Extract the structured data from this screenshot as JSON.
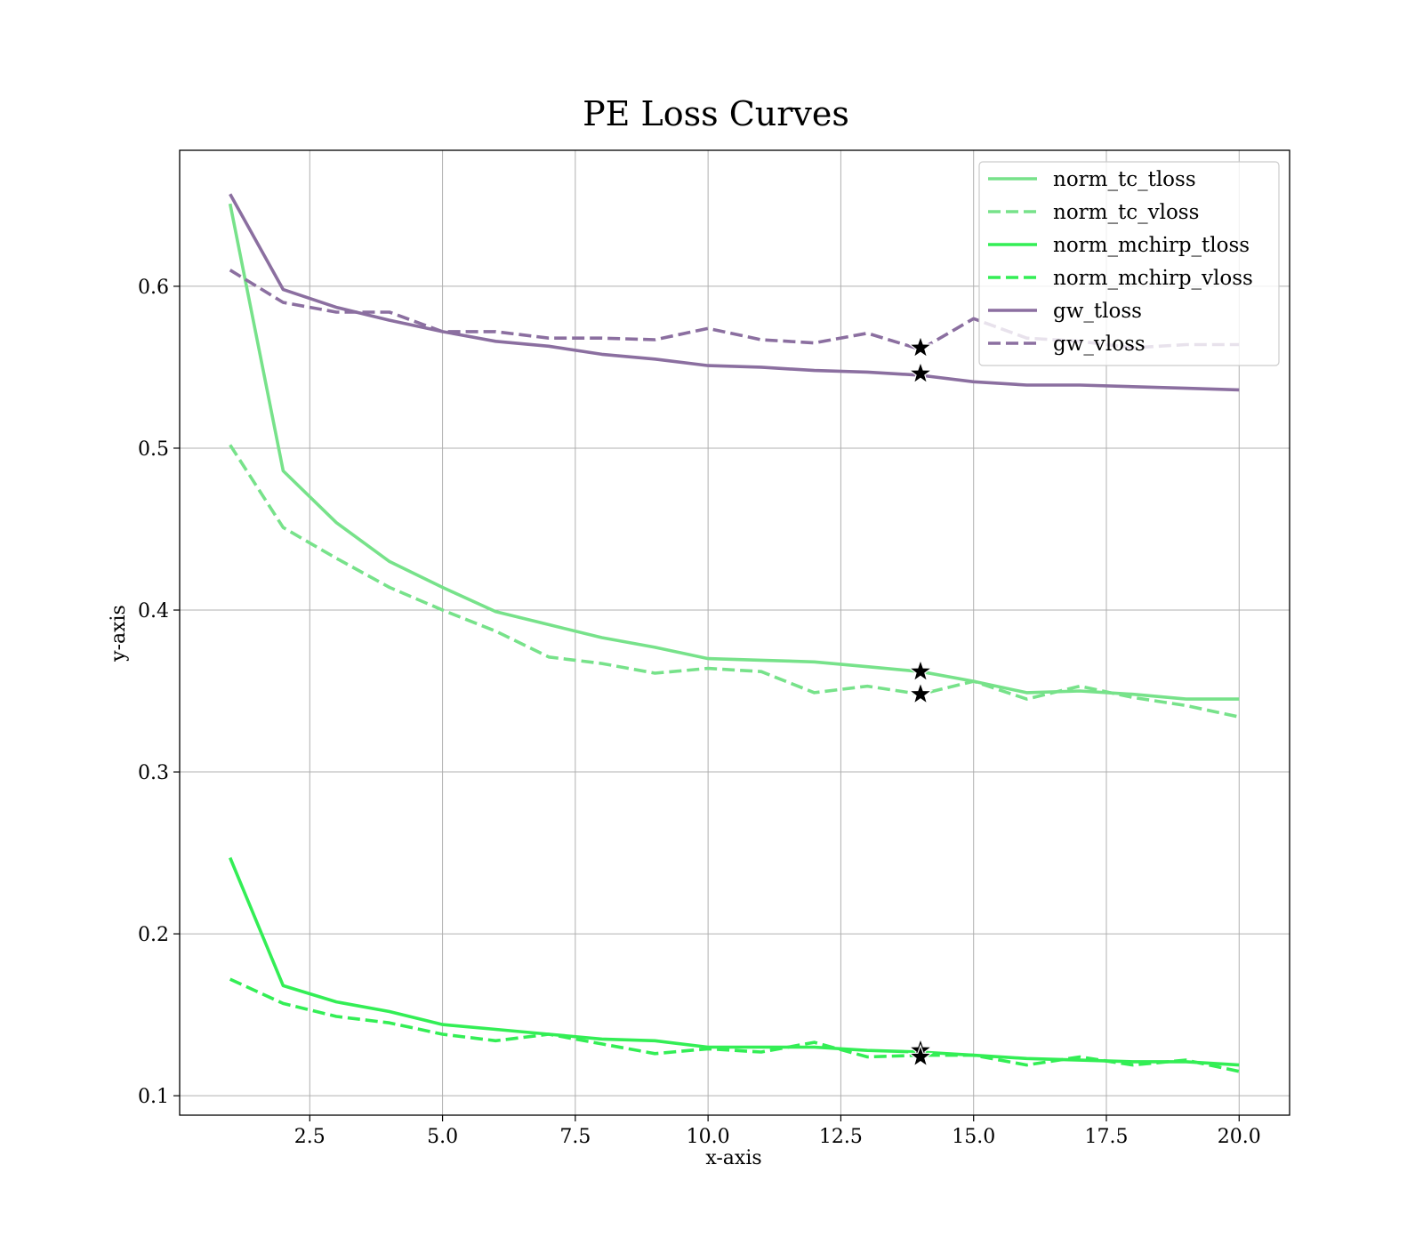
{
  "chart_data": {
    "type": "line",
    "title": "PE Loss Curves",
    "xlabel": "x-axis",
    "ylabel": "y-axis",
    "xlim": [
      0.05,
      20.95
    ],
    "ylim": [
      0.088,
      0.684
    ],
    "xticks": [
      2.5,
      5.0,
      7.5,
      10.0,
      12.5,
      15.0,
      17.5,
      20.0
    ],
    "xtick_labels": [
      "2.5",
      "5.0",
      "7.5",
      "10.0",
      "12.5",
      "15.0",
      "17.5",
      "20.0"
    ],
    "yticks": [
      0.1,
      0.2,
      0.3,
      0.4,
      0.5,
      0.6
    ],
    "ytick_labels": [
      "0.1",
      "0.2",
      "0.3",
      "0.4",
      "0.5",
      "0.6"
    ],
    "grid": true,
    "legend_position": "top-right",
    "x": [
      1,
      2,
      3,
      4,
      5,
      6,
      7,
      8,
      9,
      10,
      11,
      12,
      13,
      14,
      15,
      16,
      17,
      18,
      19,
      20
    ],
    "series": [
      {
        "name": "norm_tc_tloss",
        "style": "solid",
        "color": "#77e28a",
        "values": [
          0.651,
          0.486,
          0.454,
          0.43,
          0.414,
          0.399,
          0.391,
          0.383,
          0.377,
          0.37,
          0.369,
          0.368,
          0.365,
          0.362,
          0.356,
          0.349,
          0.35,
          0.348,
          0.345,
          0.345
        ]
      },
      {
        "name": "norm_tc_vloss",
        "style": "dashed",
        "color": "#77e28a",
        "values": [
          0.502,
          0.451,
          0.432,
          0.414,
          0.4,
          0.387,
          0.371,
          0.367,
          0.361,
          0.364,
          0.362,
          0.349,
          0.353,
          0.348,
          0.356,
          0.345,
          0.353,
          0.346,
          0.341,
          0.334
        ]
      },
      {
        "name": "norm_mchirp_tloss",
        "style": "solid",
        "color": "#33ee55",
        "values": [
          0.247,
          0.168,
          0.158,
          0.152,
          0.144,
          0.141,
          0.138,
          0.135,
          0.134,
          0.13,
          0.13,
          0.13,
          0.128,
          0.127,
          0.125,
          0.123,
          0.122,
          0.121,
          0.121,
          0.119
        ]
      },
      {
        "name": "norm_mchirp_vloss",
        "style": "dashed",
        "color": "#33ee55",
        "values": [
          0.172,
          0.157,
          0.149,
          0.145,
          0.138,
          0.134,
          0.138,
          0.132,
          0.126,
          0.129,
          0.127,
          0.133,
          0.124,
          0.125,
          0.125,
          0.119,
          0.124,
          0.119,
          0.122,
          0.115
        ]
      },
      {
        "name": "gw_tloss",
        "style": "solid",
        "color": "#8b6fa0",
        "values": [
          0.657,
          0.598,
          0.587,
          0.579,
          0.572,
          0.566,
          0.563,
          0.558,
          0.555,
          0.551,
          0.55,
          0.548,
          0.547,
          0.545,
          0.541,
          0.539,
          0.539,
          0.538,
          0.537,
          0.536
        ]
      },
      {
        "name": "gw_vloss",
        "style": "dashed",
        "color": "#8b6fa0",
        "values": [
          0.61,
          0.59,
          0.584,
          0.584,
          0.572,
          0.572,
          0.568,
          0.568,
          0.567,
          0.574,
          0.567,
          0.565,
          0.571,
          0.561,
          0.58,
          0.568,
          0.566,
          0.562,
          0.564,
          0.564
        ]
      }
    ],
    "markers": [
      {
        "x": 14,
        "y": 0.562
      },
      {
        "x": 14,
        "y": 0.546
      },
      {
        "x": 14,
        "y": 0.362
      },
      {
        "x": 14,
        "y": 0.348
      },
      {
        "x": 14,
        "y": 0.128
      },
      {
        "x": 14,
        "y": 0.124
      }
    ]
  }
}
